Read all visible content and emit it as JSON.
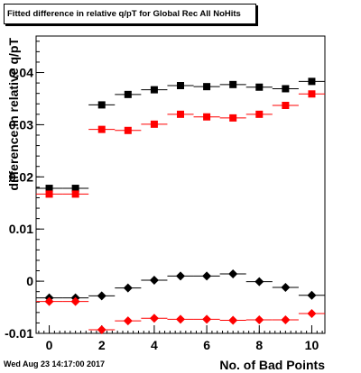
{
  "title": "Fitted difference in relative q/pT for Global Rec All NoHits",
  "footer_date": "Wed Aug 23 14:17:00 2017",
  "chart_data": {
    "type": "scatter",
    "title": "Fitted difference in relative q/pT for Global Rec All NoHits",
    "xlabel": "No. of Bad Points",
    "ylabel": "difference in relative q/pT",
    "xlim": [
      -0.5,
      10.5
    ],
    "ylim": [
      -0.01,
      0.047
    ],
    "x_ticks": [
      "0",
      "2",
      "4",
      "6",
      "8",
      "10"
    ],
    "y_ticks": [
      "-0.01",
      "0",
      "0.01",
      "0.02",
      "0.03",
      "0.04"
    ],
    "grid": false,
    "series": [
      {
        "marker": "square",
        "color": "#000000",
        "x": [
          0,
          1,
          2,
          3,
          4,
          5,
          6,
          7,
          8,
          9,
          10
        ],
        "y": [
          0.0178,
          0.0178,
          0.0338,
          0.0358,
          0.0367,
          0.0375,
          0.0373,
          0.0377,
          0.0372,
          0.0369,
          0.0383
        ]
      },
      {
        "marker": "square",
        "color": "#ff0000",
        "x": [
          0,
          1,
          2,
          3,
          4,
          5,
          6,
          7,
          8,
          9,
          10
        ],
        "y": [
          0.0167,
          0.0167,
          0.0291,
          0.0289,
          0.0301,
          0.032,
          0.0315,
          0.0313,
          0.032,
          0.0337,
          0.0359
        ]
      },
      {
        "marker": "diamond",
        "color": "#000000",
        "x": [
          0,
          1,
          2,
          3,
          4,
          5,
          6,
          7,
          8,
          9,
          10
        ],
        "y": [
          -0.0032,
          -0.0032,
          -0.0028,
          -0.0013,
          0.0002,
          0.001,
          0.001,
          0.0014,
          -0.0001,
          -0.0012,
          -0.0027
        ]
      },
      {
        "marker": "diamond",
        "color": "#ff0000",
        "x": [
          0,
          1,
          2,
          3,
          4,
          5,
          6,
          7,
          8,
          9,
          10
        ],
        "y": [
          -0.0039,
          -0.0039,
          -0.0093,
          -0.0076,
          -0.0071,
          -0.0073,
          -0.0073,
          -0.0075,
          -0.0074,
          -0.0074,
          -0.0062
        ]
      }
    ]
  }
}
